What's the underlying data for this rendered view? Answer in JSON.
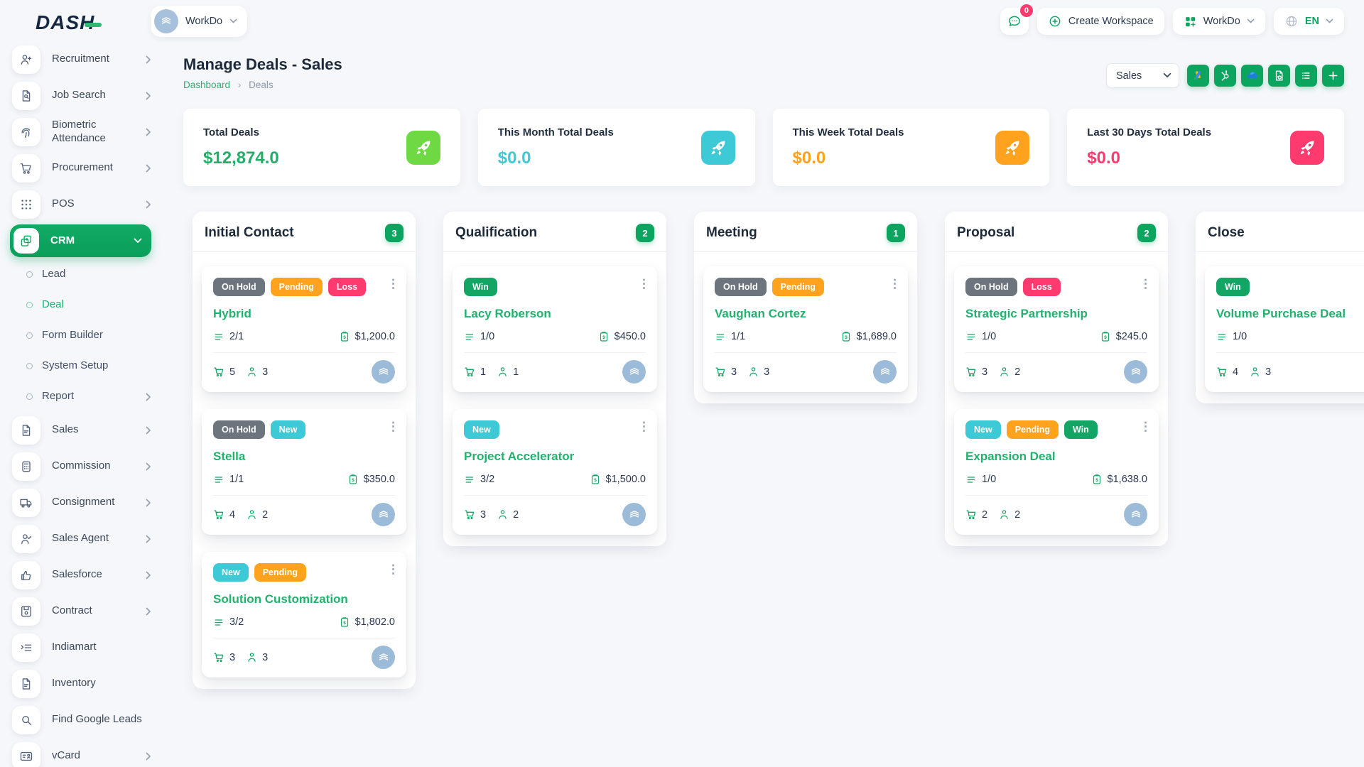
{
  "header": {
    "logo": "DASH",
    "workspace_name": "WorkDo",
    "messages_count": "0",
    "create_workspace": "Create Workspace",
    "apps_menu": "WorkDo",
    "language": "EN"
  },
  "page": {
    "title": "Manage Deals - Sales",
    "breadcrumb_home": "Dashboard",
    "breadcrumb_current": "Deals"
  },
  "toolbar": {
    "pipeline_selected": "Sales",
    "buttons": [
      "google-ads-icon",
      "hubspot-icon",
      "onedrive-icon",
      "document-sync-icon",
      "list-view-icon",
      "plus-icon"
    ]
  },
  "colors": {
    "primary_green": "#0ca55f",
    "lime_green": "#6fd943",
    "cyan": "#3ec9d6",
    "orange": "#ffa21d",
    "pink": "#ff3a6e",
    "gray_badge": "#6c757d"
  },
  "sidebar": {
    "items": [
      {
        "label": "Recruitment",
        "icon": "user-plus-icon",
        "chevron": true
      },
      {
        "label": "Job Search",
        "icon": "document-search-icon",
        "chevron": true
      },
      {
        "label": "Biometric Attendance",
        "icon": "fingerprint-icon",
        "chevron": true
      },
      {
        "label": "Procurement",
        "icon": "procurement-cart-icon",
        "chevron": true
      },
      {
        "label": "POS",
        "icon": "grid-dots-icon",
        "chevron": true
      },
      {
        "label": "CRM",
        "icon": "overlapping-squares-icon",
        "active": true,
        "expanded": true,
        "children": [
          {
            "label": "Lead"
          },
          {
            "label": "Deal",
            "active": true
          },
          {
            "label": "Form Builder"
          },
          {
            "label": "System Setup"
          },
          {
            "label": "Report",
            "chevron": true
          }
        ]
      },
      {
        "label": "Sales",
        "icon": "document-icon",
        "chevron": true
      },
      {
        "label": "Commission",
        "icon": "calculator-icon",
        "chevron": true
      },
      {
        "label": "Consignment",
        "icon": "truck-icon",
        "chevron": true
      },
      {
        "label": "Sales Agent",
        "icon": "user-check-icon",
        "chevron": true
      },
      {
        "label": "Salesforce",
        "icon": "thumbs-up-icon",
        "chevron": true
      },
      {
        "label": "Contract",
        "icon": "floppy-icon",
        "chevron": true
      },
      {
        "label": "Indiamart",
        "icon": "list-arrow-icon",
        "chevron": false
      },
      {
        "label": "Inventory",
        "icon": "document-icon",
        "chevron": false
      },
      {
        "label": "Find Google Leads",
        "icon": "search-icon",
        "chevron": false
      },
      {
        "label": "vCard",
        "icon": "id-card-icon",
        "chevron": true
      }
    ]
  },
  "stats": [
    {
      "label": "Total Deals",
      "value": "$12,874.0",
      "value_color": "#23ae68",
      "icon_bg": "#6fd943"
    },
    {
      "label": "This Month Total Deals",
      "value": "$0.0",
      "value_color": "#3ec9d6",
      "icon_bg": "#3ec9d6"
    },
    {
      "label": "This Week Total Deals",
      "value": "$0.0",
      "value_color": "#ffa21d",
      "icon_bg": "#ffa21d"
    },
    {
      "label": "Last 30 Days Total Deals",
      "value": "$0.0",
      "value_color": "#ff3a6e",
      "icon_bg": "#ff3a6e"
    }
  ],
  "board": {
    "columns": [
      {
        "name": "Initial Contact",
        "count": "3",
        "cards": [
          {
            "badges": [
              {
                "label": "On Hold",
                "color": "#6c757d"
              },
              {
                "label": "Pending",
                "color": "#ffa21d"
              },
              {
                "label": "Loss",
                "color": "#ff3a6e"
              }
            ],
            "title": "Hybrid",
            "tasks": "2/1",
            "price": "$1,200.0",
            "products": "5",
            "users": "3"
          },
          {
            "badges": [
              {
                "label": "On Hold",
                "color": "#6c757d"
              },
              {
                "label": "New",
                "color": "#3ec9d6"
              }
            ],
            "title": "Stella",
            "tasks": "1/1",
            "price": "$350.0",
            "products": "4",
            "users": "2"
          },
          {
            "badges": [
              {
                "label": "New",
                "color": "#3ec9d6"
              },
              {
                "label": "Pending",
                "color": "#ffa21d"
              }
            ],
            "title": "Solution Customization",
            "tasks": "3/2",
            "price": "$1,802.0",
            "products": "3",
            "users": "3"
          }
        ]
      },
      {
        "name": "Qualification",
        "count": "2",
        "cards": [
          {
            "badges": [
              {
                "label": "Win",
                "color": "#12a563"
              }
            ],
            "title": "Lacy Roberson",
            "tasks": "1/0",
            "price": "$450.0",
            "products": "1",
            "users": "1"
          },
          {
            "badges": [
              {
                "label": "New",
                "color": "#3ec9d6"
              }
            ],
            "title": "Project Accelerator",
            "tasks": "3/2",
            "price": "$1,500.0",
            "products": "3",
            "users": "2"
          }
        ]
      },
      {
        "name": "Meeting",
        "count": "1",
        "cards": [
          {
            "badges": [
              {
                "label": "On Hold",
                "color": "#6c757d"
              },
              {
                "label": "Pending",
                "color": "#ffa21d"
              }
            ],
            "title": "Vaughan Cortez",
            "tasks": "1/1",
            "price": "$1,689.0",
            "products": "3",
            "users": "3"
          }
        ]
      },
      {
        "name": "Proposal",
        "count": "2",
        "cards": [
          {
            "badges": [
              {
                "label": "On Hold",
                "color": "#6c757d"
              },
              {
                "label": "Loss",
                "color": "#ff3a6e"
              }
            ],
            "title": "Strategic Partnership",
            "tasks": "1/0",
            "price": "$245.0",
            "products": "3",
            "users": "2"
          },
          {
            "badges": [
              {
                "label": "New",
                "color": "#3ec9d6"
              },
              {
                "label": "Pending",
                "color": "#ffa21d"
              },
              {
                "label": "Win",
                "color": "#12a563"
              }
            ],
            "title": "Expansion Deal",
            "tasks": "1/0",
            "price": "$1,638.0",
            "products": "2",
            "users": "2"
          }
        ]
      },
      {
        "name": "Close",
        "count": "",
        "cards": [
          {
            "badges": [
              {
                "label": "Win",
                "color": "#12a563"
              }
            ],
            "title": "Volume Purchase Deal",
            "tasks": "1/0",
            "price": "",
            "products": "4",
            "users": "3"
          }
        ]
      }
    ]
  }
}
